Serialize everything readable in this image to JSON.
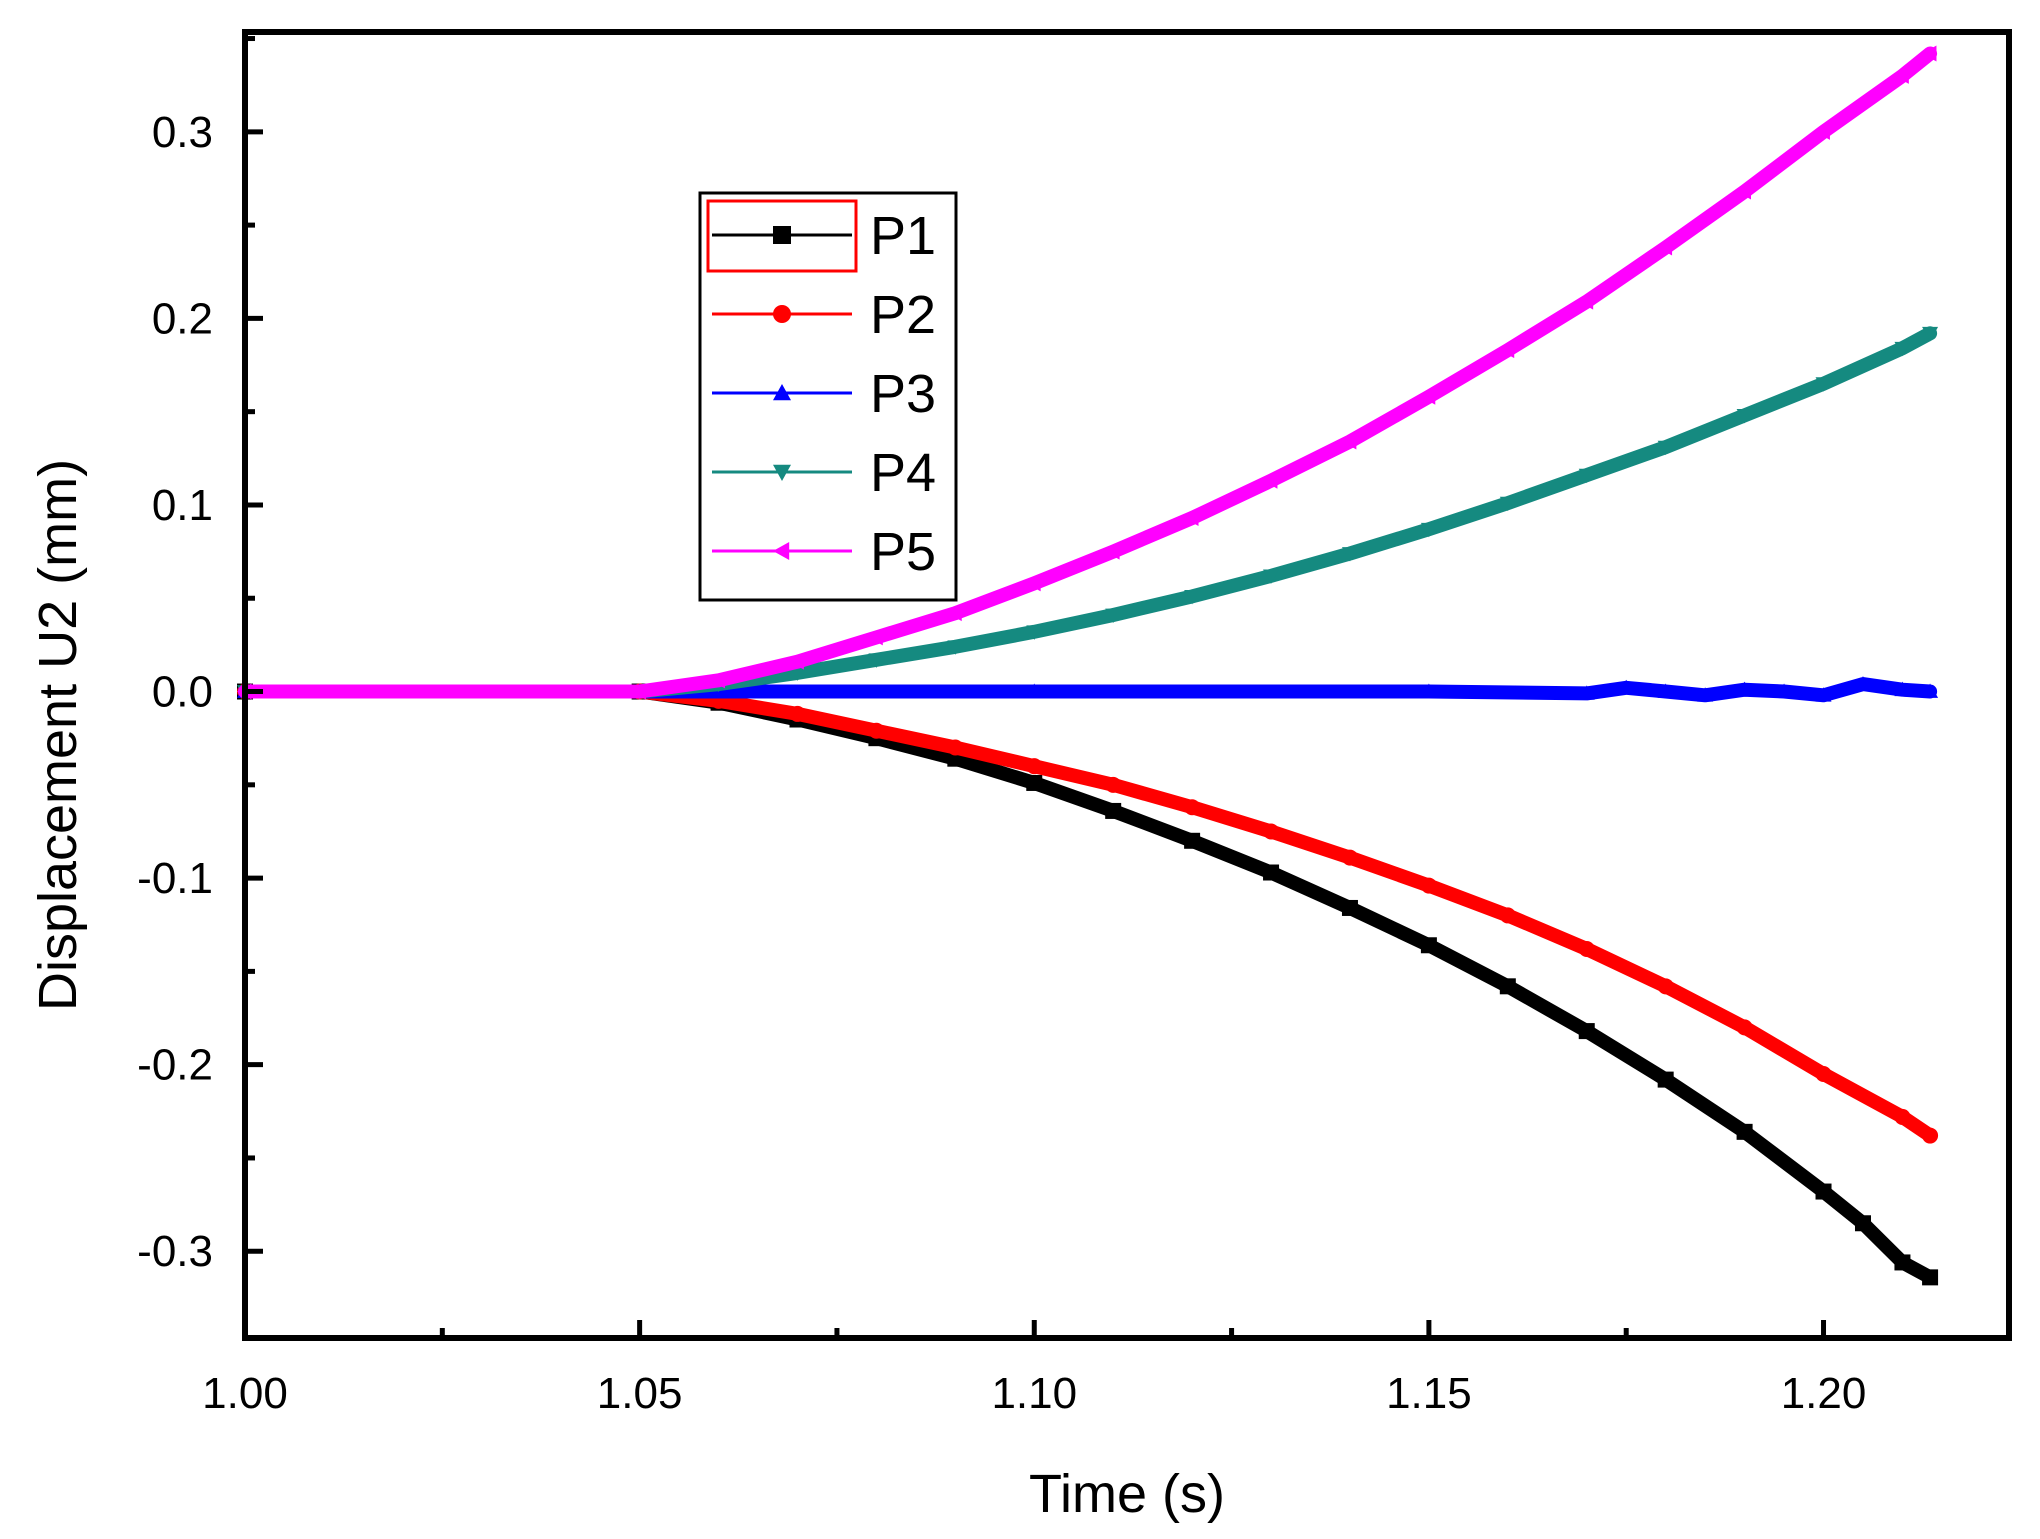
{
  "chart_data": {
    "type": "line",
    "title": "",
    "xlabel": "Time (s)",
    "ylabel": "Displacement U2 (mm)",
    "xlim": [
      1.0,
      1.2235
    ],
    "ylim": [
      -0.3465,
      0.3535
    ],
    "xticks": [
      1.0,
      1.05,
      1.1,
      1.15,
      1.2
    ],
    "xtick_labels": [
      "1.00",
      "1.05",
      "1.10",
      "1.15",
      "1.20"
    ],
    "xminor": [
      1.025,
      1.075,
      1.125,
      1.175
    ],
    "yticks": [
      -0.3,
      -0.2,
      -0.1,
      0.0,
      0.1,
      0.2,
      0.3
    ],
    "ytick_labels": [
      "-0.3",
      "-0.2",
      "-0.1",
      "0.0",
      "0.1",
      "0.2",
      "0.3"
    ],
    "yminor": [
      -0.25,
      -0.15,
      -0.05,
      0.05,
      0.15,
      0.25,
      0.35
    ],
    "grid": false,
    "legend_position": "upper-left-center",
    "series": [
      {
        "name": "P1",
        "color": "#000000",
        "marker": "square",
        "x": [
          1.0,
          1.05,
          1.06,
          1.07,
          1.08,
          1.09,
          1.1,
          1.11,
          1.12,
          1.13,
          1.14,
          1.15,
          1.16,
          1.17,
          1.18,
          1.19,
          1.2,
          1.205,
          1.21,
          1.2135
        ],
        "y": [
          0.0,
          0.0,
          -0.006,
          -0.015,
          -0.025,
          -0.036,
          -0.049,
          -0.064,
          -0.08,
          -0.097,
          -0.116,
          -0.136,
          -0.158,
          -0.182,
          -0.208,
          -0.236,
          -0.268,
          -0.285,
          -0.306,
          -0.314
        ]
      },
      {
        "name": "P2",
        "color": "#ff0000",
        "marker": "circle",
        "x": [
          1.0,
          1.05,
          1.06,
          1.07,
          1.08,
          1.09,
          1.1,
          1.11,
          1.12,
          1.13,
          1.14,
          1.15,
          1.16,
          1.17,
          1.18,
          1.19,
          1.2,
          1.21,
          1.2135
        ],
        "y": [
          0.0,
          0.0,
          -0.005,
          -0.012,
          -0.021,
          -0.03,
          -0.04,
          -0.05,
          -0.062,
          -0.075,
          -0.089,
          -0.104,
          -0.12,
          -0.138,
          -0.158,
          -0.18,
          -0.205,
          -0.228,
          -0.238
        ]
      },
      {
        "name": "P3",
        "color": "#0000ff",
        "marker": "triangle-up",
        "x": [
          1.0,
          1.05,
          1.1,
          1.15,
          1.17,
          1.175,
          1.18,
          1.185,
          1.19,
          1.195,
          1.2,
          1.205,
          1.21,
          1.2135
        ],
        "y": [
          0.0,
          0.0,
          0.0,
          0.0,
          -0.001,
          0.002,
          0.0,
          -0.002,
          0.001,
          0.0,
          -0.002,
          0.004,
          0.001,
          0.0
        ]
      },
      {
        "name": "P4",
        "color": "#158a80",
        "marker": "triangle-down",
        "x": [
          1.0,
          1.05,
          1.06,
          1.07,
          1.08,
          1.09,
          1.1,
          1.11,
          1.12,
          1.13,
          1.14,
          1.15,
          1.16,
          1.17,
          1.18,
          1.19,
          1.2,
          1.21,
          1.2135
        ],
        "y": [
          0.0,
          0.0,
          0.004,
          0.01,
          0.017,
          0.024,
          0.032,
          0.041,
          0.051,
          0.062,
          0.074,
          0.087,
          0.101,
          0.116,
          0.131,
          0.148,
          0.165,
          0.184,
          0.192
        ]
      },
      {
        "name": "P5",
        "color": "#ff00ff",
        "marker": "triangle-left",
        "x": [
          1.0,
          1.05,
          1.06,
          1.07,
          1.08,
          1.09,
          1.1,
          1.11,
          1.12,
          1.13,
          1.14,
          1.15,
          1.16,
          1.17,
          1.18,
          1.19,
          1.2,
          1.21,
          1.2135
        ],
        "y": [
          0.0,
          0.0,
          0.006,
          0.016,
          0.029,
          0.042,
          0.058,
          0.075,
          0.093,
          0.113,
          0.134,
          0.158,
          0.183,
          0.209,
          0.238,
          0.268,
          0.3,
          0.33,
          0.342
        ]
      }
    ]
  }
}
